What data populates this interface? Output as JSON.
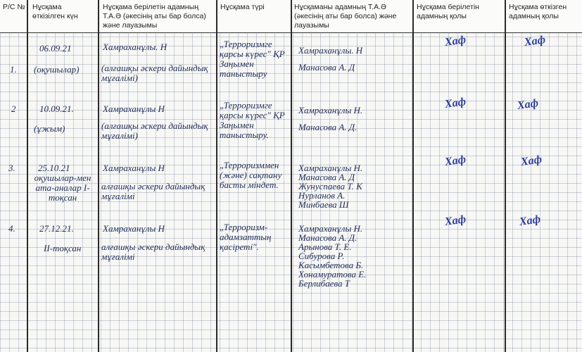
{
  "headers": [
    "Р/С №",
    "Нұсқама өткізілген күн",
    "Нұсқама берілетін адамның Т.А.Ә (әкесінің аты бар болса) және лауазымы",
    "Нұсқама түрі",
    "Нұсқаманы адамның Т.А.Ә (әкесінің аты бар болса) және лауазымы",
    "Нұсқама берілетін адамның қолы",
    "Нұсқама өткізген адамның қолы"
  ],
  "rows": [
    {
      "num": "1.",
      "date": "06.09.21",
      "audience": "(оқушылар)",
      "instructor": "Хамраханұлы. Н",
      "position": "(алғашқы әскери дайындық мұғалімі)",
      "type": "„Терроризмге қарсы күрес\" ҚР Заңымен таныстыру",
      "persons": "Хамраханұлы. Н\nМанасова А. Д",
      "sig1": "Хаф",
      "sig2": "Хаф"
    },
    {
      "num": "2",
      "date": "10.09.21.",
      "audience": "(ұжым)",
      "instructor": "Хамраханұлы Н",
      "position": "(алғашқы әскери дайындық мұғалімі)",
      "type": "„Терроризмге қарсы күрес\" ҚР Заңымен таныстыру.",
      "persons": "Хамраханұлы Н.\nМанасова А. Д.",
      "sig1": "Хаф",
      "sig2": "Хаф"
    },
    {
      "num": "3.",
      "date": "25.10.21",
      "audience": "оқушылар-мен ата-аналар I-тоқсан",
      "instructor": "Хамраханұлы Н",
      "position": "алғашқы әскери дайындық мұғалімі",
      "type": "„Терроризммен (және) сақтану басты міндет.",
      "persons": "Хамраханұлы Н.\nМанасова А. Д\nЖунуспаева Т. К\nНурланов А.\nМинбаева Ш",
      "sig1": "Хаф",
      "sig2": "Хаф"
    },
    {
      "num": "4.",
      "date": "27.12.21.",
      "audience": "II-тоқсан",
      "instructor": "Хамраханұлы Н",
      "position": "алғашқы әскери дайындық мұғалімі",
      "type": "„Терроризм-адамзаттың қасіреті\".",
      "persons": "Хамраханұлы Н.\nМанасова А. Д.\nАрынова Т. Е.\nСибурова Р.\nКасымбетова Б.\nХонамуратова Е.\nБерлибаева Т",
      "sig1": "Хаф",
      "sig2": "Хаф"
    }
  ]
}
